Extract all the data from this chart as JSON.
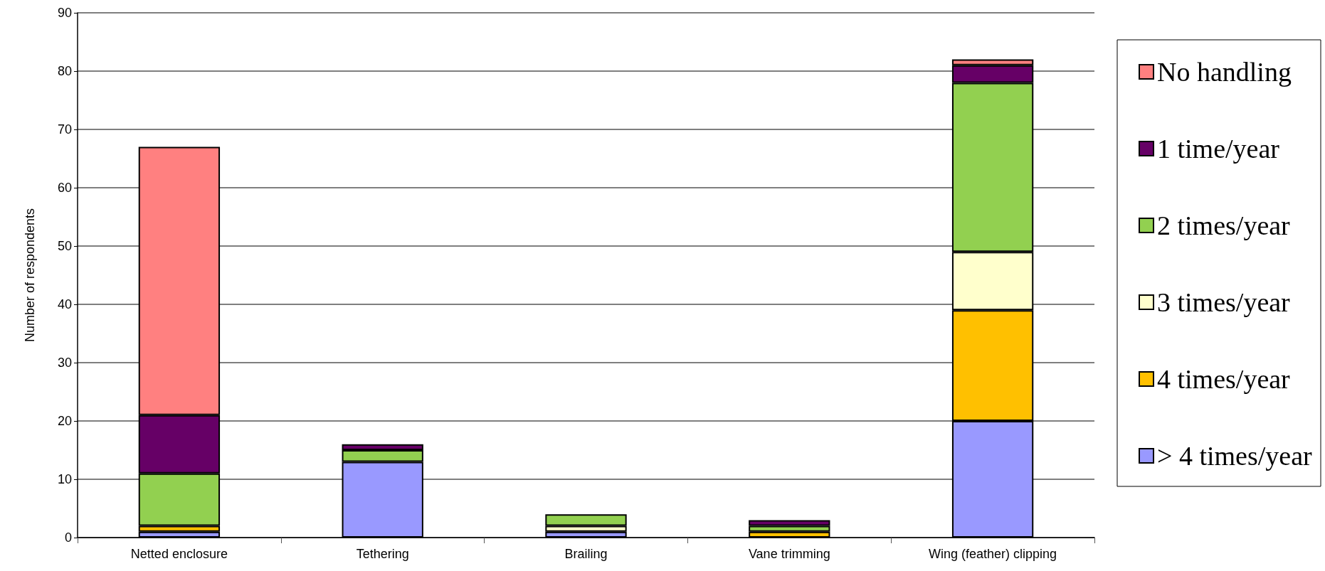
{
  "chart_data": {
    "type": "bar",
    "stacked": true,
    "ylabel": "Number of respondents",
    "categories": [
      "Netted enclosure",
      "Tethering",
      "Brailing",
      "Vane trimming",
      "Wing (feather) clipping"
    ],
    "series": [
      {
        "name": "> 4 times/year",
        "color": "#9999ff",
        "values": [
          1,
          13,
          1,
          null,
          20
        ]
      },
      {
        "name": "4 times/year",
        "color": "#ffc000",
        "values": [
          1,
          null,
          null,
          1,
          19
        ]
      },
      {
        "name": "3 times/year",
        "color": "#ffffcc",
        "values": [
          null,
          null,
          1,
          null,
          10
        ]
      },
      {
        "name": "2 times/year",
        "color": "#92d050",
        "values": [
          9,
          2,
          2,
          1,
          29
        ]
      },
      {
        "name": "1 time/year",
        "color": "#660066",
        "values": [
          10,
          1,
          null,
          1,
          3
        ]
      },
      {
        "name": "No handling",
        "color": "#ff8080",
        "values": [
          46,
          null,
          null,
          null,
          1
        ]
      }
    ],
    "ylim": [
      0,
      90
    ],
    "yticks": [
      0,
      10,
      20,
      30,
      40,
      50,
      60,
      70,
      80,
      90
    ],
    "grid": "y",
    "legend": "right"
  }
}
